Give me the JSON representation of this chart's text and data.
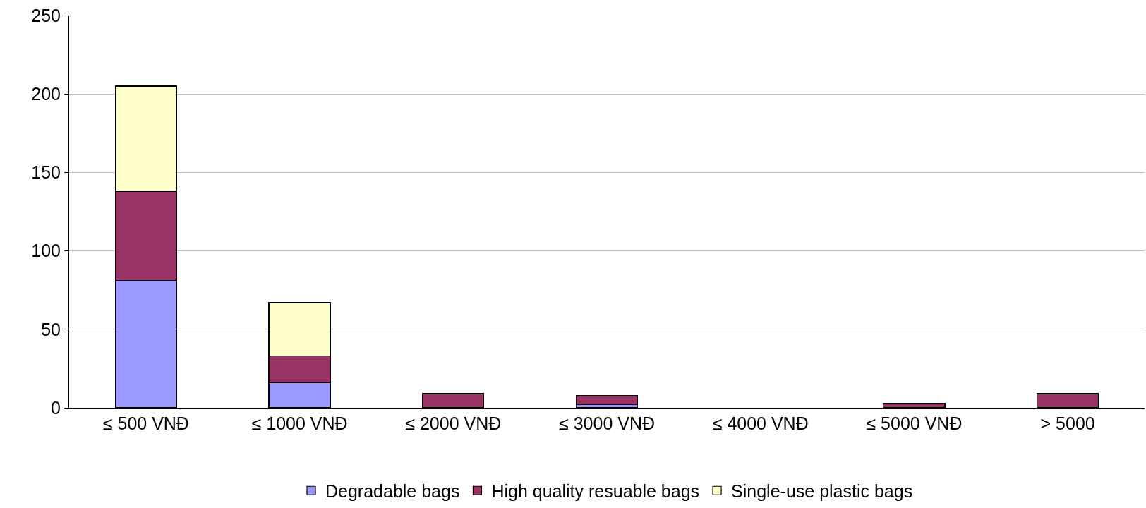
{
  "chart_data": {
    "type": "bar",
    "stacked": true,
    "categories": [
      "≤ 500 VNĐ",
      "≤ 1000 VNĐ",
      "≤ 2000 VNĐ",
      "≤ 3000 VNĐ",
      "≤ 4000 VNĐ",
      "≤ 5000 VNĐ",
      "> 5000"
    ],
    "series": [
      {
        "name": "Degradable bags",
        "color": "#9999ff",
        "values": [
          81,
          16,
          0,
          2,
          0,
          0,
          0
        ]
      },
      {
        "name": "High quality resuable bags",
        "color": "#993366",
        "values": [
          57,
          17,
          9,
          6,
          0,
          3,
          9
        ]
      },
      {
        "name": "Single-use plastic bags",
        "color": "#ffffcc",
        "values": [
          67,
          34,
          0,
          0,
          0,
          0,
          0
        ]
      }
    ],
    "ylim": [
      0,
      250
    ],
    "yticks": [
      0,
      50,
      100,
      150,
      200,
      250
    ],
    "grid": "y",
    "legend": "bottom"
  }
}
